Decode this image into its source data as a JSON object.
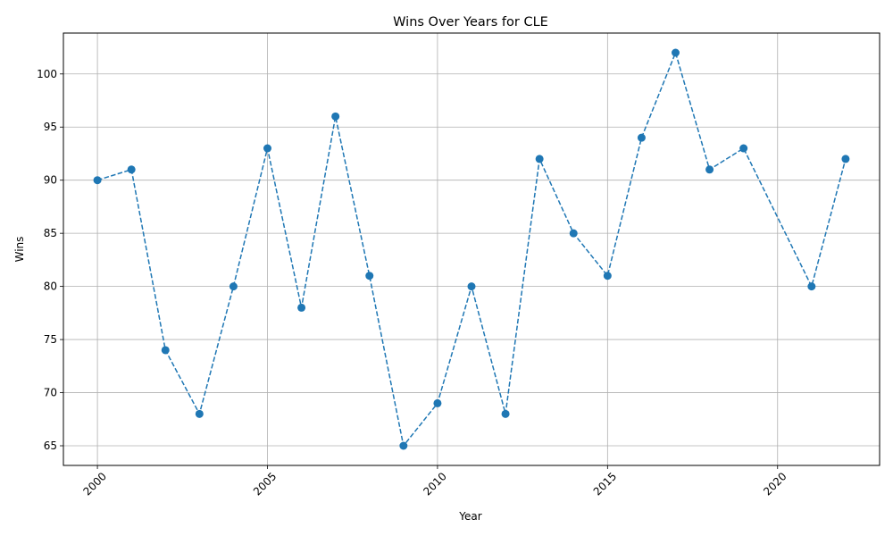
{
  "chart_data": {
    "type": "line",
    "title": "Wins Over Years for CLE",
    "xlabel": "Year",
    "ylabel": "Wins",
    "x": [
      2000,
      2001,
      2002,
      2003,
      2004,
      2005,
      2006,
      2007,
      2008,
      2009,
      2010,
      2011,
      2012,
      2013,
      2014,
      2015,
      2016,
      2017,
      2018,
      2019,
      2021,
      2022
    ],
    "series": [
      {
        "values": [
          90,
          91,
          74,
          68,
          80,
          93,
          78,
          96,
          81,
          65,
          69,
          80,
          68,
          92,
          85,
          81,
          94,
          102,
          91,
          93,
          80,
          92
        ],
        "color": "#1f77b4",
        "line_style": "dashed",
        "marker": "circle"
      }
    ],
    "xlim": [
      1999,
      2023
    ],
    "ylim": [
      63.15,
      103.85
    ],
    "xticks": [
      2000,
      2005,
      2010,
      2015,
      2020
    ],
    "yticks": [
      65,
      70,
      75,
      80,
      85,
      90,
      95,
      100
    ],
    "xtick_rotation": 45,
    "grid": true,
    "legend": false
  }
}
